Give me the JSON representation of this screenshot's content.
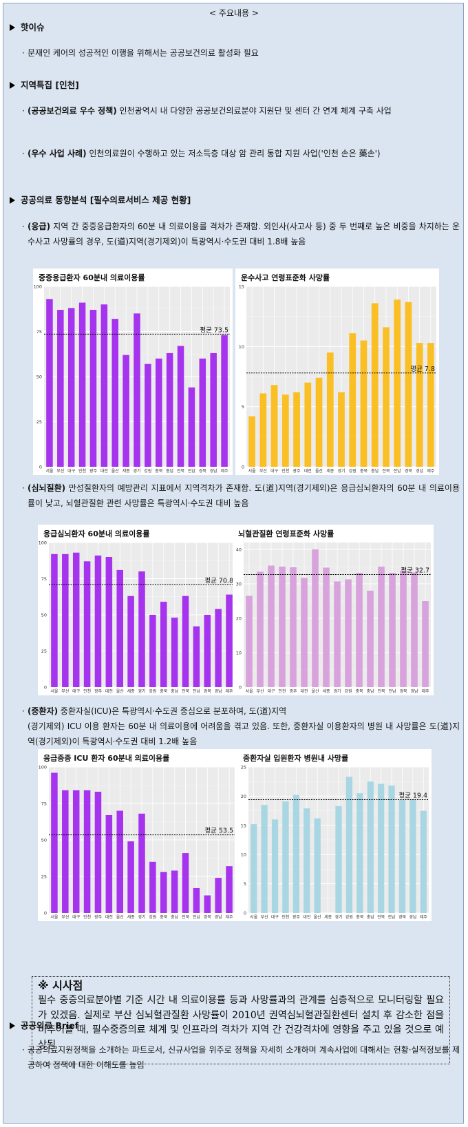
{
  "header_title": "< 주요내용 >",
  "sections": {
    "hot": "핫이슈",
    "region": "지역특집 [인천]",
    "trend": "공공의료 동향분석 [필수의료서비스 제공 현황]",
    "brief": "공공의료 Brief"
  },
  "bullets": {
    "hot1": "문재인 케어의 성공적인 이행을 위해서는 공공보건의료 활성화 필요",
    "region1_label": "(공공보건의료 우수 정책)",
    "region1_text": " 인천광역시 내 다양한 공공보건의료분야 지원단 및 센터 간 연계 체계 구축 사업",
    "region2_label": "(우수 사업 사례)",
    "region2_text": " 인천의료원이 수행하고 있는 저소득층 대상 암 관리 통합 지원 사업('인천 손은 藥손')",
    "trend1_label": "(응급)",
    "trend1_text": " 지역 간 중증응급환자의 60분 내 의료이용를 격차가 존재함. 외인사(사고사 등) 중 두 번째로 높은 비중을 차지하는 운수사고 사망률의 경우, 도(道)지역(경기제외)이 특광역시·수도권 대비 1.8배 높음",
    "trend2_label": "(심뇌질환)",
    "trend2_text": " 만성질환자의 예방관리 지표에서 지역격차가 존재함. 도(道)지역(경기제외)은 응급심뇌환자의 60분 내 의료이용률이 낮고, 뇌혈관질환 관련 사망률은 특광역시·수도권 대비 높음",
    "trend3_label": "(중환자)",
    "trend3_line1": " 중환자실(ICU)은 특광역시·수도권 중심으로 분포하여, 도(道)지역",
    "trend3_line2": "(경기제외) ICU 이용 환자는 60분 내 의료이용에 어려움을 겪고 있음. 또한, 중환자실 이용환자의 병원 내 사망률은 도(道)지역(경기제외)이 특광역시·수도권 대비 1.2배 높음",
    "brief1": "공공의료지원정책을 소개하는 파트로서, 신규사업을 위주로 정책을 자세히 소개하며 계속사업에 대해서는 현황·실적정보를 제공하여 정책에 대한 이해도를 높임"
  },
  "implication": {
    "heading": "※ 시사점",
    "body": "필수 중증의료분야별 기준 시간 내 의료이용률 등과 사망률과의 관계를 심층적으로 모니터링할 필요가 있겠음. 실제로 부산 심뇌혈관질환 사망률이 2010년 권역심뇌혈관질환센터 설치 후 감소한 점을 비추어볼 때, 필수중증의료 체계 및 인프라의 격차가 지역 간 건강격차에 영향을 주고 있을 것으로 예상됨"
  },
  "chart_data": [
    {
      "type": "bar",
      "title": "중증응급환자 60분내 의료이용률",
      "categories": [
        "서울",
        "부산",
        "대구",
        "인천",
        "광주",
        "대전",
        "울산",
        "세종",
        "경기",
        "강원",
        "충북",
        "충남",
        "전북",
        "전남",
        "경북",
        "경남",
        "제주"
      ],
      "values": [
        93,
        87,
        88,
        91,
        87,
        90,
        82,
        62,
        85,
        57,
        60,
        63,
        67,
        44,
        60,
        63,
        73
      ],
      "ylim": [
        0,
        100
      ],
      "yticks": [
        0,
        25,
        50,
        75,
        100
      ],
      "average": 73.5,
      "average_label": "평균 73.5",
      "color": "#a633ee"
    },
    {
      "type": "bar",
      "title": "운수사고 연령표준화 사망률",
      "categories": [
        "서울",
        "부산",
        "대구",
        "인천",
        "광주",
        "대전",
        "울산",
        "세종",
        "경기",
        "강원",
        "충북",
        "충남",
        "전북",
        "전남",
        "경북",
        "경남",
        "제주"
      ],
      "values": [
        4.2,
        6.1,
        6.8,
        6.0,
        6.2,
        7.0,
        7.4,
        9.5,
        6.2,
        11.1,
        10.5,
        13.6,
        11.6,
        13.9,
        13.7,
        10.3,
        10.3
      ],
      "ylim": [
        0,
        15
      ],
      "yticks": [
        0,
        5,
        10,
        15
      ],
      "average": 7.8,
      "average_label": "평균 7.8",
      "color": "#fbbf26"
    },
    {
      "type": "bar",
      "title": "응급심뇌환자 60분내 의료이용률",
      "categories": [
        "서울",
        "부산",
        "대구",
        "인천",
        "광주",
        "대전",
        "울산",
        "세종",
        "경기",
        "강원",
        "충북",
        "충남",
        "전북",
        "전남",
        "경북",
        "경남",
        "제주"
      ],
      "values": [
        92,
        92,
        93,
        87,
        91,
        90,
        81,
        63,
        80,
        50,
        59,
        48,
        63,
        42,
        50,
        54,
        64
      ],
      "ylim": [
        0,
        100
      ],
      "yticks": [
        0,
        25,
        50,
        75,
        100
      ],
      "average": 70.8,
      "average_label": "평균 70.8",
      "color": "#a633ee"
    },
    {
      "type": "bar",
      "title": "뇌혈관질환 연령표준화 사망률",
      "categories": [
        "서울",
        "부산",
        "대구",
        "인천",
        "광주",
        "대전",
        "울산",
        "세종",
        "경기",
        "강원",
        "충북",
        "충남",
        "전북",
        "전남",
        "경북",
        "경남",
        "제주"
      ],
      "values": [
        26.5,
        33.5,
        35.3,
        35.0,
        34.8,
        31.7,
        40.0,
        34.7,
        30.7,
        31.3,
        33.2,
        28.0,
        35.0,
        33.2,
        33.8,
        33.3,
        25.0
      ],
      "ylim": [
        0,
        42
      ],
      "yticks": [
        0,
        10,
        20,
        30,
        40
      ],
      "average": 32.7,
      "average_label": "평균 32.7",
      "color": "#d8a2dd"
    },
    {
      "type": "bar",
      "title": "응급중증 ICU 환자 60분내 의료이용률",
      "categories": [
        "서울",
        "부산",
        "대구",
        "인천",
        "광주",
        "대전",
        "울산",
        "세종",
        "경기",
        "강원",
        "충북",
        "충남",
        "전북",
        "전남",
        "경북",
        "경남",
        "제주"
      ],
      "values": [
        96,
        84,
        84,
        84,
        83,
        67,
        70,
        49,
        68,
        35,
        28,
        29,
        41,
        17,
        12,
        24,
        32
      ],
      "ylim": [
        0,
        100
      ],
      "yticks": [
        0,
        25,
        50,
        75,
        100
      ],
      "average": 53.5,
      "average_label": "평균 53.5",
      "color": "#a633ee"
    },
    {
      "type": "bar",
      "title": "중환자실 입원환자 병원내 사망률",
      "categories": [
        "서울",
        "부산",
        "대구",
        "인천",
        "광주",
        "대전",
        "울산",
        "세종",
        "경기",
        "강원",
        "충북",
        "충남",
        "전북",
        "전남",
        "경북",
        "경남",
        "제주"
      ],
      "values": [
        15.2,
        18.5,
        16.0,
        19.1,
        20.2,
        17.9,
        16.2,
        null,
        18.3,
        23.3,
        20.5,
        22.5,
        22.1,
        21.8,
        19.4,
        19.4,
        17.5
      ],
      "ylim": [
        0,
        25
      ],
      "yticks": [
        0,
        5,
        10,
        15,
        20,
        25
      ],
      "average": 19.4,
      "average_label": "평균 19.4",
      "color": "#a8d6e3"
    }
  ]
}
